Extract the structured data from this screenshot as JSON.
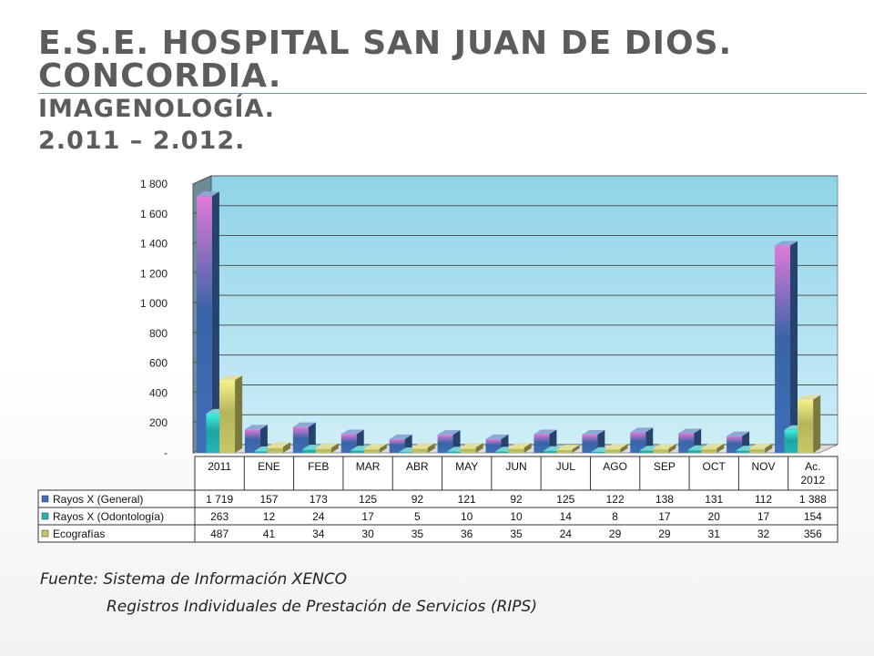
{
  "slide": {
    "title_line1": "E.S.E. HOSPITAL SAN JUAN DE DIOS.  CONCORDIA.",
    "title_line2": "IMAGENOLOGÍA.",
    "title_line3": "2.011 – 2.012.",
    "source_line1": "Fuente: Sistema de Información XENCO",
    "source_line2": "Registros Individuales de Prestación de Servicios (RIPS)"
  },
  "chart_data": {
    "type": "bar",
    "style": "3d-clustered-column-with-data-table",
    "categories": [
      "2011",
      "ENE",
      "FEB",
      "MAR",
      "ABR",
      "MAY",
      "JUN",
      "JUL",
      "AGO",
      "SEP",
      "OCT",
      "NOV",
      "Ac. 2012"
    ],
    "series": [
      {
        "name": "Rayos X (General)",
        "values": [
          1719,
          157,
          173,
          125,
          92,
          121,
          92,
          125,
          122,
          138,
          131,
          112,
          1388
        ],
        "labels": [
          "1 719",
          "157",
          "173",
          "125",
          "92",
          "121",
          "92",
          "125",
          "122",
          "138",
          "131",
          "112",
          "1 388"
        ],
        "color": "#3f6fb8"
      },
      {
        "name": "Rayos X (Odontología)",
        "values": [
          263,
          12,
          24,
          17,
          5,
          10,
          10,
          14,
          8,
          17,
          20,
          17,
          154
        ],
        "labels": [
          "263",
          "12",
          "24",
          "17",
          "5",
          "10",
          "10",
          "14",
          "8",
          "17",
          "20",
          "17",
          "154"
        ],
        "color": "#22b5b5"
      },
      {
        "name": "Ecografías",
        "values": [
          487,
          41,
          34,
          30,
          35,
          36,
          35,
          24,
          29,
          29,
          31,
          32,
          356
        ],
        "labels": [
          "487",
          "41",
          "34",
          "30",
          "35",
          "36",
          "35",
          "24",
          "29",
          "29",
          "31",
          "32",
          "356"
        ],
        "color": "#c9c866"
      }
    ],
    "ylim": [
      0,
      1800
    ],
    "yticks": [
      0,
      200,
      400,
      600,
      800,
      1000,
      1200,
      1400,
      1600,
      1800
    ],
    "ytick_labels": [
      "-",
      "200",
      "400",
      "600",
      "800",
      "1 000",
      "1 200",
      "1 400",
      "1 600",
      "1 800"
    ],
    "grid": true,
    "legend": "data-table"
  }
}
